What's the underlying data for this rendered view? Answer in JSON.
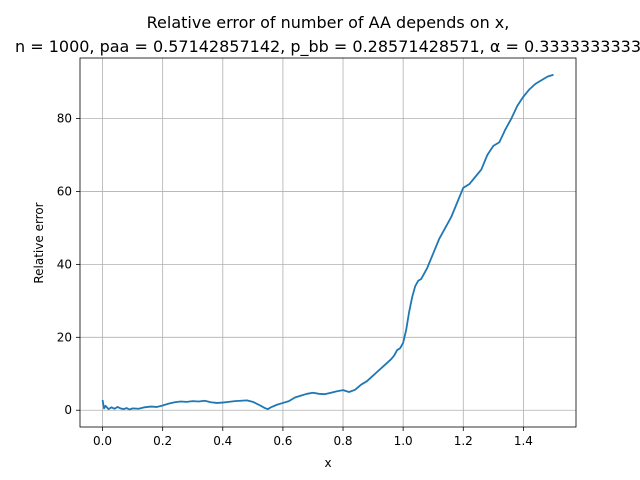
{
  "chart_data": {
    "type": "line",
    "title_line1": "Relative error of number of AA depends on x,",
    "title_line2": "n = 1000, paa = 0.57142857142, p_bb = 0.28571428571, α = 0.3333333333",
    "xlabel": "x",
    "ylabel": "Relative error",
    "xlim": [
      -0.075,
      1.575
    ],
    "ylim": [
      -4.6,
      96.6
    ],
    "grid": true,
    "x_ticks": [
      0.0,
      0.2,
      0.4,
      0.6,
      0.8,
      1.0,
      1.2,
      1.4
    ],
    "x_tick_labels": [
      "0.0",
      "0.2",
      "0.4",
      "0.6",
      "0.8",
      "1.0",
      "1.2",
      "1.4"
    ],
    "y_ticks": [
      0,
      20,
      40,
      60,
      80
    ],
    "y_tick_labels": [
      "0",
      "20",
      "40",
      "60",
      "80"
    ],
    "line_color": "#1f77b4",
    "series": [
      {
        "x": [
          0.0,
          0.005,
          0.01,
          0.02,
          0.03,
          0.04,
          0.05,
          0.06,
          0.07,
          0.08,
          0.09,
          0.1,
          0.12,
          0.14,
          0.16,
          0.18,
          0.2,
          0.22,
          0.24,
          0.26,
          0.28,
          0.3,
          0.32,
          0.34,
          0.36,
          0.38,
          0.4,
          0.42,
          0.44,
          0.46,
          0.48,
          0.5,
          0.52,
          0.54,
          0.55,
          0.56,
          0.58,
          0.6,
          0.62,
          0.64,
          0.66,
          0.68,
          0.7,
          0.72,
          0.74,
          0.76,
          0.78,
          0.8,
          0.82,
          0.84,
          0.86,
          0.88,
          0.9,
          0.92,
          0.94,
          0.96,
          0.97,
          0.98,
          0.99,
          1.0,
          1.01,
          1.02,
          1.03,
          1.04,
          1.05,
          1.06,
          1.08,
          1.1,
          1.12,
          1.14,
          1.16,
          1.18,
          1.2,
          1.22,
          1.24,
          1.26,
          1.28,
          1.3,
          1.32,
          1.34,
          1.36,
          1.38,
          1.4,
          1.42,
          1.44,
          1.46,
          1.48,
          1.5
        ],
        "y": [
          2.8,
          0.5,
          1.2,
          0.3,
          0.8,
          0.4,
          0.9,
          0.5,
          0.3,
          0.6,
          0.2,
          0.5,
          0.4,
          0.8,
          1.0,
          0.9,
          1.3,
          1.8,
          2.2,
          2.4,
          2.3,
          2.5,
          2.4,
          2.6,
          2.2,
          2.0,
          2.1,
          2.3,
          2.5,
          2.6,
          2.7,
          2.3,
          1.5,
          0.6,
          0.3,
          0.8,
          1.5,
          2.0,
          2.5,
          3.5,
          4.0,
          4.5,
          4.8,
          4.5,
          4.4,
          4.8,
          5.2,
          5.5,
          5.0,
          5.6,
          7.0,
          8.0,
          9.5,
          11.0,
          12.5,
          14.0,
          15.0,
          16.5,
          17.0,
          18.5,
          22.0,
          27.0,
          31.0,
          34.0,
          35.5,
          36.0,
          39.0,
          43.0,
          47.0,
          50.0,
          53.0,
          57.0,
          61.0,
          62.0,
          64.0,
          66.0,
          70.0,
          72.5,
          73.5,
          77.0,
          80.0,
          83.5,
          86.0,
          88.0,
          89.5,
          90.5,
          91.5,
          92.0
        ]
      }
    ]
  }
}
